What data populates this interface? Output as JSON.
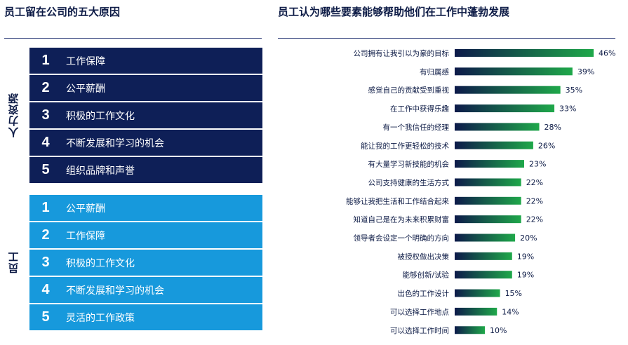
{
  "left_title": "员工留在公司的五大原因",
  "right_title": "员工认为哪些要素能够帮助他们在工作中蓬勃发展",
  "hr_group": {
    "label": "人力资源",
    "items": [
      {
        "num": "1",
        "text": "工作保障"
      },
      {
        "num": "2",
        "text": "公平薪酬"
      },
      {
        "num": "3",
        "text": "积极的工作文化"
      },
      {
        "num": "4",
        "text": "不断发展和学习的机会"
      },
      {
        "num": "5",
        "text": "组织品牌和声誉"
      }
    ]
  },
  "employee_group": {
    "label": "员工",
    "items": [
      {
        "num": "1",
        "text": "公平薪酬"
      },
      {
        "num": "2",
        "text": "工作保障"
      },
      {
        "num": "3",
        "text": "积极的工作文化"
      },
      {
        "num": "4",
        "text": "不断发展和学习的机会"
      },
      {
        "num": "5",
        "text": "灵活的工作政策"
      }
    ]
  },
  "colors": {
    "navy": "#0e1f57",
    "light_blue": "#1799dc",
    "bar_start": "#0d1a4a",
    "bar_end": "#1fa84a"
  },
  "chart_data": {
    "type": "bar",
    "orientation": "horizontal",
    "categories": [
      "公司拥有让我引以为豪的目标",
      "有归属感",
      "感觉自己的贡献受到重视",
      "在工作中获得乐趣",
      "有一个我信任的经理",
      "能让我的工作更轻松的技术",
      "有大量学习新技能的机会",
      "公司支持健康的生活方式",
      "能够让我把生活和工作结合起来",
      "知道自己是在为未来积累财富",
      "领导者会设定一个明确的方向",
      "被授权做出决策",
      "能够创新/试验",
      "出色的工作设计",
      "可以选择工作地点",
      "可以选择工作时间"
    ],
    "values": [
      46,
      39,
      35,
      33,
      28,
      26,
      23,
      22,
      22,
      22,
      20,
      19,
      19,
      15,
      14,
      10
    ],
    "value_labels": [
      "46%",
      "39%",
      "35%",
      "33%",
      "28%",
      "26%",
      "23%",
      "22%",
      "22%",
      "22%",
      "20%",
      "19%",
      "19%",
      "15%",
      "14%",
      "10%"
    ],
    "unit": "%",
    "xlim": [
      0,
      46
    ]
  }
}
